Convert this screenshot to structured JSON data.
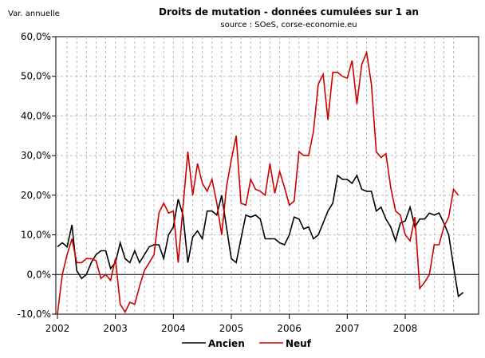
{
  "chart_data": {
    "type": "line",
    "title": "Droits de mutation - données cumulées sur 1 an",
    "subtitle": "source : SOeS, corse-economie.eu",
    "ylabel": "Var. annuelle",
    "xlabel": "",
    "ylim": [
      -10,
      60
    ],
    "yticks": [
      -10,
      0,
      10,
      20,
      30,
      40,
      50,
      60
    ],
    "ytick_labels": [
      "-10,0%",
      "0,0%",
      "10,0%",
      "20,0%",
      "30,0%",
      "40,0%",
      "50,0%",
      "60,0%"
    ],
    "xtick_labels": [
      "2002",
      "2003",
      "2004",
      "2005",
      "2006",
      "2007",
      "2008"
    ],
    "x_start": "2002-01",
    "x_frequency": "monthly",
    "grid": true,
    "legend_position": "bottom",
    "series": [
      {
        "name": "Ancien",
        "color": "#000000",
        "values": [
          7,
          8,
          7,
          12.5,
          1,
          -1,
          0,
          3,
          5,
          6,
          6,
          1.5,
          3,
          8,
          4,
          3,
          6,
          3,
          5,
          7,
          7.5,
          7.5,
          4,
          10,
          12,
          19,
          15,
          3,
          9.5,
          11,
          9,
          16,
          16,
          15,
          20,
          12,
          4,
          3,
          9,
          15,
          14.5,
          15,
          14,
          9,
          9,
          9,
          8,
          7.5,
          10,
          14.5,
          14,
          11.5,
          12,
          9,
          10,
          13,
          16,
          18,
          25,
          24,
          24,
          23,
          25,
          21.5,
          21,
          21,
          16,
          17,
          14,
          12,
          8.5,
          13,
          13.5,
          17,
          12,
          14,
          14,
          15.5,
          15,
          15.5,
          13,
          10,
          2,
          -5.5,
          -4.5
        ]
      },
      {
        "name": "Neuf",
        "color": "#cc0000",
        "values": [
          -10,
          0,
          5,
          9,
          3,
          3,
          4,
          4,
          3.5,
          -1,
          0,
          -1.5,
          4,
          -7.5,
          -9.5,
          -7,
          -7.5,
          -3,
          1,
          3,
          5,
          15.5,
          18,
          15.5,
          16,
          3,
          17,
          31,
          20,
          28,
          23,
          21,
          24,
          18,
          10,
          22,
          29,
          35,
          18,
          17.5,
          24,
          21.5,
          21,
          20,
          28,
          20.5,
          26,
          22,
          17.5,
          18.5,
          31,
          30,
          30,
          36,
          48,
          50.5,
          39,
          51,
          51,
          50,
          49.5,
          54,
          43,
          53,
          56,
          48,
          31,
          29.5,
          30.5,
          22,
          16,
          15,
          10,
          8.5,
          14.5,
          -3.5,
          -2,
          0,
          7.5,
          7.5,
          12,
          14.5,
          21.5,
          20
        ]
      }
    ]
  }
}
